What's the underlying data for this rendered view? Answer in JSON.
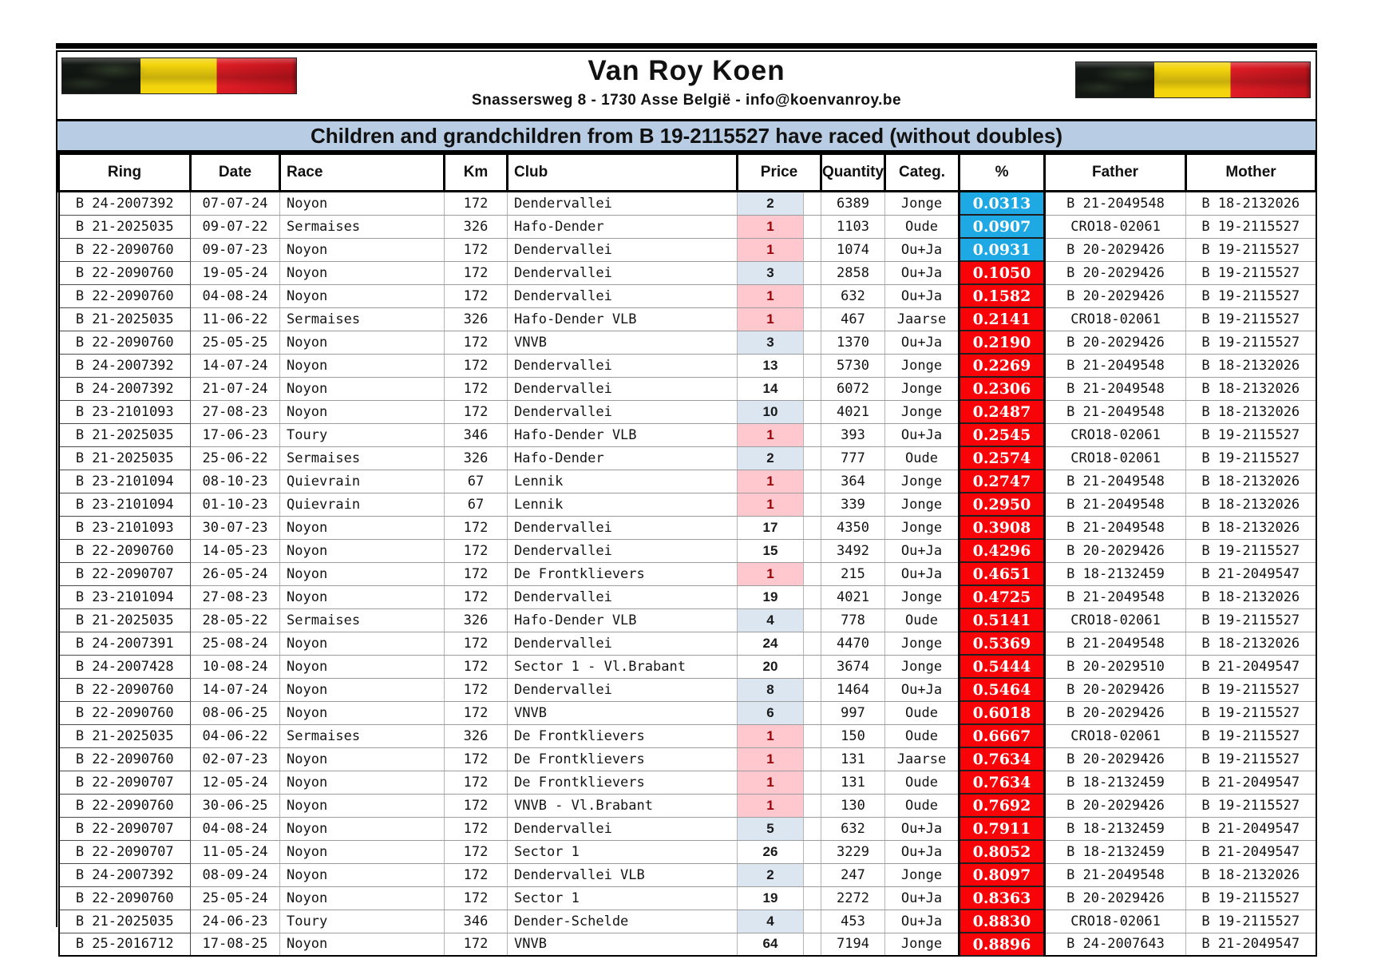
{
  "header": {
    "title": "Van Roy Koen",
    "address": "Snassersweg 8 - 1730 Asse België - info@koenvanroy.be"
  },
  "banner": {
    "text": "Children and grandchildren from B 19-2115527 have raced (without doubles)",
    "bg_color": "#b8cce4"
  },
  "flags": {
    "description": "belgian-flag",
    "colors": [
      "#141814",
      "#f3d40d",
      "#e01d26"
    ]
  },
  "colors": {
    "price_blue_bg": "#dce6f1",
    "price_pink_bg": "#ffc7ce",
    "price_pink_text": "#9c0006",
    "pct_blue_bg": "#1fa9e4",
    "pct_red_bg": "#f80408",
    "pct_text": "#ffffff"
  },
  "table": {
    "columns": [
      {
        "key": "ring",
        "label": "Ring",
        "colspan": 1
      },
      {
        "key": "date",
        "label": "Date",
        "colspan": 1
      },
      {
        "key": "race",
        "label": "Race",
        "colspan": 1
      },
      {
        "key": "km",
        "label": "Km",
        "colspan": 1
      },
      {
        "key": "club",
        "label": "Club",
        "colspan": 1
      },
      {
        "key": "price",
        "label": "Price",
        "colspan": 2
      },
      {
        "key": "qty",
        "label": "Quantity",
        "colspan": 1
      },
      {
        "key": "categ",
        "label": "Categ.",
        "colspan": 1
      },
      {
        "key": "pct",
        "label": "%",
        "colspan": 1
      },
      {
        "key": "father",
        "label": "Father",
        "colspan": 1
      },
      {
        "key": "mother",
        "label": "Mother",
        "colspan": 1
      }
    ],
    "rows": [
      {
        "ring": "B 24-2007392",
        "date": "07-07-24",
        "race": "Noyon",
        "km": "172",
        "club": "Dendervallei",
        "price": "2",
        "price_style": "blue",
        "qty": "6389",
        "categ": "Jonge",
        "pct": "0.0313",
        "pct_style": "blue",
        "father": "B 21-2049548",
        "mother": "B 18-2132026"
      },
      {
        "ring": "B 21-2025035",
        "date": "09-07-22",
        "race": "Sermaises",
        "km": "326",
        "club": "Hafo-Dender",
        "price": "1",
        "price_style": "pink",
        "qty": "1103",
        "categ": "Oude",
        "pct": "0.0907",
        "pct_style": "blue",
        "father": "CRO18-02061",
        "mother": "B 19-2115527"
      },
      {
        "ring": "B 22-2090760",
        "date": "09-07-23",
        "race": "Noyon",
        "km": "172",
        "club": "Dendervallei",
        "price": "1",
        "price_style": "pink",
        "qty": "1074",
        "categ": "Ou+Ja",
        "pct": "0.0931",
        "pct_style": "blue",
        "father": "B 20-2029426",
        "mother": "B 19-2115527"
      },
      {
        "ring": "B 22-2090760",
        "date": "19-05-24",
        "race": "Noyon",
        "km": "172",
        "club": "Dendervallei",
        "price": "3",
        "price_style": "blue",
        "qty": "2858",
        "categ": "Ou+Ja",
        "pct": "0.1050",
        "pct_style": "red",
        "father": "B 20-2029426",
        "mother": "B 19-2115527"
      },
      {
        "ring": "B 22-2090760",
        "date": "04-08-24",
        "race": "Noyon",
        "km": "172",
        "club": "Dendervallei",
        "price": "1",
        "price_style": "pink",
        "qty": "632",
        "categ": "Ou+Ja",
        "pct": "0.1582",
        "pct_style": "red",
        "father": "B 20-2029426",
        "mother": "B 19-2115527"
      },
      {
        "ring": "B 21-2025035",
        "date": "11-06-22",
        "race": "Sermaises",
        "km": "326",
        "club": "Hafo-Dender VLB",
        "price": "1",
        "price_style": "pink",
        "qty": "467",
        "categ": "Jaarse",
        "pct": "0.2141",
        "pct_style": "red",
        "father": "CRO18-02061",
        "mother": "B 19-2115527"
      },
      {
        "ring": "B 22-2090760",
        "date": "25-05-25",
        "race": "Noyon",
        "km": "172",
        "club": "VNVB",
        "price": "3",
        "price_style": "blue",
        "qty": "1370",
        "categ": "Ou+Ja",
        "pct": "0.2190",
        "pct_style": "red",
        "father": "B 20-2029426",
        "mother": "B 19-2115527"
      },
      {
        "ring": "B 24-2007392",
        "date": "14-07-24",
        "race": "Noyon",
        "km": "172",
        "club": "Dendervallei",
        "price": "13",
        "price_style": "none",
        "qty": "5730",
        "categ": "Jonge",
        "pct": "0.2269",
        "pct_style": "red",
        "father": "B 21-2049548",
        "mother": "B 18-2132026"
      },
      {
        "ring": "B 24-2007392",
        "date": "21-07-24",
        "race": "Noyon",
        "km": "172",
        "club": "Dendervallei",
        "price": "14",
        "price_style": "none",
        "qty": "6072",
        "categ": "Jonge",
        "pct": "0.2306",
        "pct_style": "red",
        "father": "B 21-2049548",
        "mother": "B 18-2132026"
      },
      {
        "ring": "B 23-2101093",
        "date": "27-08-23",
        "race": "Noyon",
        "km": "172",
        "club": "Dendervallei",
        "price": "10",
        "price_style": "blue",
        "qty": "4021",
        "categ": "Jonge",
        "pct": "0.2487",
        "pct_style": "red",
        "father": "B 21-2049548",
        "mother": "B 18-2132026"
      },
      {
        "ring": "B 21-2025035",
        "date": "17-06-23",
        "race": "Toury",
        "km": "346",
        "club": "Hafo-Dender VLB",
        "price": "1",
        "price_style": "pink",
        "qty": "393",
        "categ": "Ou+Ja",
        "pct": "0.2545",
        "pct_style": "red",
        "father": "CRO18-02061",
        "mother": "B 19-2115527"
      },
      {
        "ring": "B 21-2025035",
        "date": "25-06-22",
        "race": "Sermaises",
        "km": "326",
        "club": "Hafo-Dender",
        "price": "2",
        "price_style": "blue",
        "qty": "777",
        "categ": "Oude",
        "pct": "0.2574",
        "pct_style": "red",
        "father": "CRO18-02061",
        "mother": "B 19-2115527"
      },
      {
        "ring": "B 23-2101094",
        "date": "08-10-23",
        "race": "Quievrain",
        "km": "67",
        "club": "Lennik",
        "price": "1",
        "price_style": "pink",
        "qty": "364",
        "categ": "Jonge",
        "pct": "0.2747",
        "pct_style": "red",
        "father": "B 21-2049548",
        "mother": "B 18-2132026"
      },
      {
        "ring": "B 23-2101094",
        "date": "01-10-23",
        "race": "Quievrain",
        "km": "67",
        "club": "Lennik",
        "price": "1",
        "price_style": "pink",
        "qty": "339",
        "categ": "Jonge",
        "pct": "0.2950",
        "pct_style": "red",
        "father": "B 21-2049548",
        "mother": "B 18-2132026"
      },
      {
        "ring": "B 23-2101093",
        "date": "30-07-23",
        "race": "Noyon",
        "km": "172",
        "club": "Dendervallei",
        "price": "17",
        "price_style": "none",
        "qty": "4350",
        "categ": "Jonge",
        "pct": "0.3908",
        "pct_style": "red",
        "father": "B 21-2049548",
        "mother": "B 18-2132026"
      },
      {
        "ring": "B 22-2090760",
        "date": "14-05-23",
        "race": "Noyon",
        "km": "172",
        "club": "Dendervallei",
        "price": "15",
        "price_style": "none",
        "qty": "3492",
        "categ": "Ou+Ja",
        "pct": "0.4296",
        "pct_style": "red",
        "father": "B 20-2029426",
        "mother": "B 19-2115527"
      },
      {
        "ring": "B 22-2090707",
        "date": "26-05-24",
        "race": "Noyon",
        "km": "172",
        "club": "De Frontklievers",
        "price": "1",
        "price_style": "pink",
        "qty": "215",
        "categ": "Ou+Ja",
        "pct": "0.4651",
        "pct_style": "red",
        "father": "B 18-2132459",
        "mother": "B 21-2049547"
      },
      {
        "ring": "B 23-2101094",
        "date": "27-08-23",
        "race": "Noyon",
        "km": "172",
        "club": "Dendervallei",
        "price": "19",
        "price_style": "none",
        "qty": "4021",
        "categ": "Jonge",
        "pct": "0.4725",
        "pct_style": "red",
        "father": "B 21-2049548",
        "mother": "B 18-2132026"
      },
      {
        "ring": "B 21-2025035",
        "date": "28-05-22",
        "race": "Sermaises",
        "km": "326",
        "club": "Hafo-Dender VLB",
        "price": "4",
        "price_style": "blue",
        "qty": "778",
        "categ": "Oude",
        "pct": "0.5141",
        "pct_style": "red",
        "father": "CRO18-02061",
        "mother": "B 19-2115527"
      },
      {
        "ring": "B 24-2007391",
        "date": "25-08-24",
        "race": "Noyon",
        "km": "172",
        "club": "Dendervallei",
        "price": "24",
        "price_style": "none",
        "qty": "4470",
        "categ": "Jonge",
        "pct": "0.5369",
        "pct_style": "red",
        "father": "B 21-2049548",
        "mother": "B 18-2132026"
      },
      {
        "ring": "B 24-2007428",
        "date": "10-08-24",
        "race": "Noyon",
        "km": "172",
        "club": "Sector 1 - Vl.Brabant",
        "price": "20",
        "price_style": "none",
        "qty": "3674",
        "categ": "Jonge",
        "pct": "0.5444",
        "pct_style": "red",
        "father": "B 20-2029510",
        "mother": "B 21-2049547"
      },
      {
        "ring": "B 22-2090760",
        "date": "14-07-24",
        "race": "Noyon",
        "km": "172",
        "club": "Dendervallei",
        "price": "8",
        "price_style": "blue",
        "qty": "1464",
        "categ": "Ou+Ja",
        "pct": "0.5464",
        "pct_style": "red",
        "father": "B 20-2029426",
        "mother": "B 19-2115527"
      },
      {
        "ring": "B 22-2090760",
        "date": "08-06-25",
        "race": "Noyon",
        "km": "172",
        "club": "VNVB",
        "price": "6",
        "price_style": "blue",
        "qty": "997",
        "categ": "Oude",
        "pct": "0.6018",
        "pct_style": "red",
        "father": "B 20-2029426",
        "mother": "B 19-2115527"
      },
      {
        "ring": "B 21-2025035",
        "date": "04-06-22",
        "race": "Sermaises",
        "km": "326",
        "club": "De Frontklievers",
        "price": "1",
        "price_style": "pink",
        "qty": "150",
        "categ": "Oude",
        "pct": "0.6667",
        "pct_style": "red",
        "father": "CRO18-02061",
        "mother": "B 19-2115527"
      },
      {
        "ring": "B 22-2090760",
        "date": "02-07-23",
        "race": "Noyon",
        "km": "172",
        "club": "De Frontklievers",
        "price": "1",
        "price_style": "pink",
        "qty": "131",
        "categ": "Jaarse",
        "pct": "0.7634",
        "pct_style": "red",
        "father": "B 20-2029426",
        "mother": "B 19-2115527"
      },
      {
        "ring": "B 22-2090707",
        "date": "12-05-24",
        "race": "Noyon",
        "km": "172",
        "club": "De Frontklievers",
        "price": "1",
        "price_style": "pink",
        "qty": "131",
        "categ": "Oude",
        "pct": "0.7634",
        "pct_style": "red",
        "father": "B 18-2132459",
        "mother": "B 21-2049547"
      },
      {
        "ring": "B 22-2090760",
        "date": "30-06-25",
        "race": "Noyon",
        "km": "172",
        "club": "VNVB - Vl.Brabant",
        "price": "1",
        "price_style": "pink",
        "qty": "130",
        "categ": "Oude",
        "pct": "0.7692",
        "pct_style": "red",
        "father": "B 20-2029426",
        "mother": "B 19-2115527"
      },
      {
        "ring": "B 22-2090707",
        "date": "04-08-24",
        "race": "Noyon",
        "km": "172",
        "club": "Dendervallei",
        "price": "5",
        "price_style": "blue",
        "qty": "632",
        "categ": "Ou+Ja",
        "pct": "0.7911",
        "pct_style": "red",
        "father": "B 18-2132459",
        "mother": "B 21-2049547"
      },
      {
        "ring": "B 22-2090707",
        "date": "11-05-24",
        "race": "Noyon",
        "km": "172",
        "club": "Sector 1",
        "price": "26",
        "price_style": "none",
        "qty": "3229",
        "categ": "Ou+Ja",
        "pct": "0.8052",
        "pct_style": "red",
        "father": "B 18-2132459",
        "mother": "B 21-2049547"
      },
      {
        "ring": "B 24-2007392",
        "date": "08-09-24",
        "race": "Noyon",
        "km": "172",
        "club": "Dendervallei VLB",
        "price": "2",
        "price_style": "blue",
        "qty": "247",
        "categ": "Jonge",
        "pct": "0.8097",
        "pct_style": "red",
        "father": "B 21-2049548",
        "mother": "B 18-2132026"
      },
      {
        "ring": "B 22-2090760",
        "date": "25-05-24",
        "race": "Noyon",
        "km": "172",
        "club": "Sector 1",
        "price": "19",
        "price_style": "none",
        "qty": "2272",
        "categ": "Ou+Ja",
        "pct": "0.8363",
        "pct_style": "red",
        "father": "B 20-2029426",
        "mother": "B 19-2115527"
      },
      {
        "ring": "B 21-2025035",
        "date": "24-06-23",
        "race": "Toury",
        "km": "346",
        "club": "Dender-Schelde",
        "price": "4",
        "price_style": "blue",
        "qty": "453",
        "categ": "Ou+Ja",
        "pct": "0.8830",
        "pct_style": "red",
        "father": "CRO18-02061",
        "mother": "B 19-2115527"
      },
      {
        "ring": "B 25-2016712",
        "date": "17-08-25",
        "race": "Noyon",
        "km": "172",
        "club": "VNVB",
        "price": "64",
        "price_style": "none",
        "qty": "7194",
        "categ": "Jonge",
        "pct": "0.8896",
        "pct_style": "red",
        "father": "B 24-2007643",
        "mother": "B 21-2049547"
      }
    ]
  }
}
